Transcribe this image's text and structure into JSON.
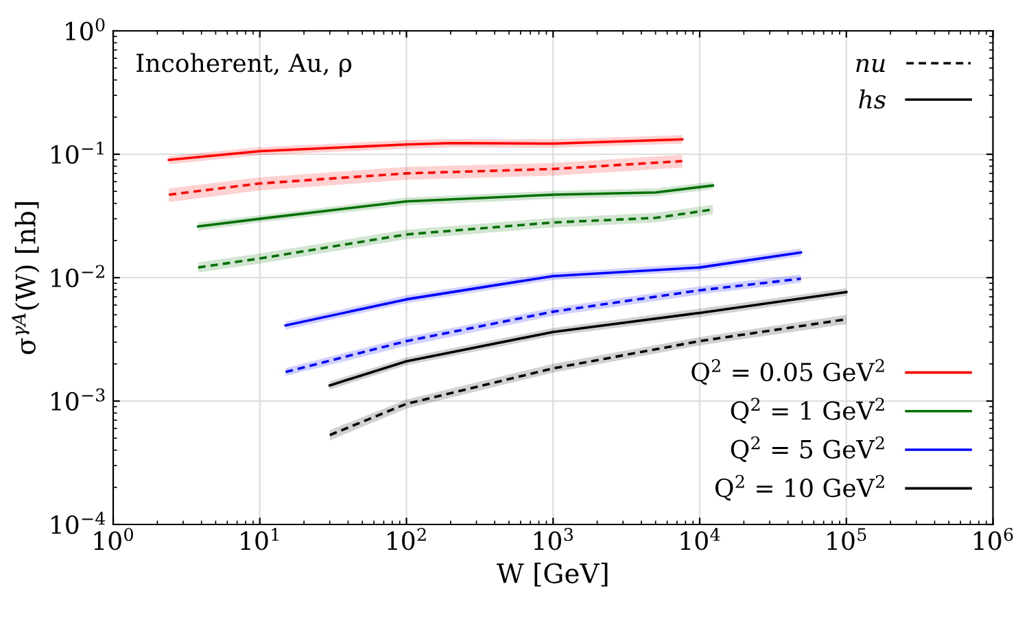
{
  "chart_data": {
    "type": "line",
    "xlabel": "W [GeV]",
    "ylabel": "σ$^{γA}$(W) [nb]",
    "log": "xy",
    "grid": true,
    "legend": "bottom right",
    "xlim": [
      1,
      1000000
    ],
    "ylim": [
      0.0001,
      1
    ],
    "xticks": [
      {
        "value": 1,
        "label": "10$^{0}$"
      },
      {
        "value": 10,
        "label": "10$^{1}$"
      },
      {
        "value": 100,
        "label": "10$^{2}$"
      },
      {
        "value": 1000,
        "label": "10$^{3}$"
      },
      {
        "value": 10000,
        "label": "10$^{4}$"
      },
      {
        "value": 100000,
        "label": "10$^{5}$"
      },
      {
        "value": 1000000,
        "label": "10$^{6}$"
      }
    ],
    "yticks": [
      {
        "value": 0.0001,
        "label": "10$^{−4}$"
      },
      {
        "value": 0.001,
        "label": "10$^{−3}$"
      },
      {
        "value": 0.01,
        "label": "10$^{−2}$"
      },
      {
        "value": 0.1,
        "label": "10$^{−1}$"
      },
      {
        "value": 1,
        "label": "10$^{0}$"
      }
    ],
    "annotations": [
      "Incoherent, Au, ρ",
      "nu",
      "hs"
    ],
    "series": [
      {
        "color": "#ff0000",
        "line_style": "dashed",
        "x": [
          2.4,
          10,
          100,
          1000,
          7600
        ],
        "values": [
          0.047,
          0.058,
          0.07,
          0.076,
          0.088
        ],
        "lower": [
          0.041,
          0.051,
          0.062,
          0.067,
          0.078
        ],
        "upper": [
          0.053,
          0.065,
          0.079,
          0.085,
          0.099
        ]
      },
      {
        "name": "Q$^{2}$ = 0.05 GeV$^{2}$",
        "color": "#ff0000",
        "line_style": "solid",
        "x": [
          2.4,
          10,
          100,
          200,
          1000,
          7600
        ],
        "values": [
          0.09,
          0.106,
          0.12,
          0.123,
          0.122,
          0.132
        ],
        "lower": [
          0.083,
          0.098,
          0.111,
          0.114,
          0.113,
          0.122
        ],
        "upper": [
          0.097,
          0.114,
          0.13,
          0.133,
          0.132,
          0.143
        ]
      },
      {
        "color": "#007000",
        "line_style": "dashed",
        "x": [
          3.8,
          10,
          100,
          1000,
          5000,
          12300
        ],
        "values": [
          0.0121,
          0.0143,
          0.0224,
          0.028,
          0.0305,
          0.0357
        ],
        "lower": [
          0.011,
          0.013,
          0.0205,
          0.0255,
          0.028,
          0.0325
        ],
        "upper": [
          0.0133,
          0.0157,
          0.0245,
          0.0305,
          0.0335,
          0.039
        ]
      },
      {
        "name": "Q$^{2}$ = 1 GeV$^{2}$",
        "color": "#007000",
        "line_style": "solid",
        "x": [
          3.8,
          10,
          100,
          1000,
          5000,
          12300
        ],
        "values": [
          0.026,
          0.03,
          0.0415,
          0.047,
          0.049,
          0.0558
        ],
        "lower": [
          0.024,
          0.028,
          0.0385,
          0.0435,
          0.0455,
          0.052
        ],
        "upper": [
          0.028,
          0.032,
          0.0445,
          0.0505,
          0.053,
          0.06
        ]
      },
      {
        "color": "#0000ff",
        "line_style": "dashed",
        "x": [
          15,
          100,
          1000,
          10000,
          49000
        ],
        "values": [
          0.00172,
          0.00306,
          0.0053,
          0.0079,
          0.0098
        ],
        "lower": [
          0.0016,
          0.0028,
          0.0049,
          0.0073,
          0.0091
        ],
        "upper": [
          0.00185,
          0.0033,
          0.0057,
          0.0085,
          0.0106
        ]
      },
      {
        "name": "Q$^{2}$ = 5 GeV$^{2}$",
        "color": "#0000ff",
        "line_style": "solid",
        "x": [
          15,
          100,
          1000,
          10000,
          49000
        ],
        "values": [
          0.0041,
          0.00667,
          0.0103,
          0.0121,
          0.016
        ],
        "lower": [
          0.0038,
          0.0062,
          0.0096,
          0.0113,
          0.0149
        ],
        "upper": [
          0.0044,
          0.0072,
          0.011,
          0.013,
          0.0172
        ]
      },
      {
        "color": "#000000",
        "line_style": "dashed",
        "x": [
          30,
          100,
          1000,
          10000,
          100000
        ],
        "values": [
          0.00053,
          0.00095,
          0.00184,
          0.00306,
          0.0046
        ],
        "lower": [
          0.00048,
          0.00087,
          0.0017,
          0.00283,
          0.0042
        ],
        "upper": [
          0.00058,
          0.00103,
          0.002,
          0.0033,
          0.005
        ]
      },
      {
        "name": "Q$^{2}$ = 10 GeV$^{2}$",
        "color": "#000000",
        "line_style": "solid",
        "x": [
          30,
          100,
          1000,
          10000,
          100000
        ],
        "values": [
          0.00134,
          0.0021,
          0.00363,
          0.00518,
          0.00764
        ],
        "lower": [
          0.00124,
          0.00195,
          0.00337,
          0.0048,
          0.0071
        ],
        "upper": [
          0.00144,
          0.00226,
          0.0039,
          0.0056,
          0.0082
        ]
      }
    ]
  }
}
